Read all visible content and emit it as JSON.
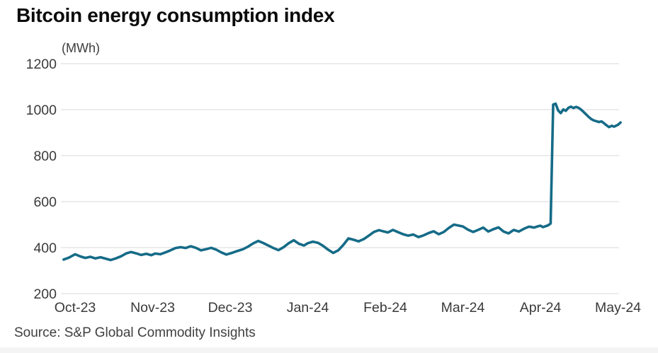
{
  "header": {
    "title": "Bitcoin energy consumption index"
  },
  "footer": {
    "source": "Source: S&P Global Commodity Insights"
  },
  "colors": {
    "line": "#156b87",
    "grid": "#d9d9d9",
    "axis_text": "#3a3a3a",
    "title_text": "#0b0b0b",
    "source_text": "#3f3f3f",
    "background": "#ffffff"
  },
  "chart_data": {
    "type": "line",
    "title": "Bitcoin energy consumption index",
    "unit_label": "(MWh)",
    "xlabel": "",
    "ylabel": "MWh",
    "ylim": [
      200,
      1200
    ],
    "y_ticks": [
      1200,
      1000,
      800,
      600,
      400,
      200
    ],
    "x_tick_labels": [
      "Oct-23",
      "Nov-23",
      "Dec-23",
      "Jan-24",
      "Feb-24",
      "Mar-24",
      "Apr-24",
      "May-24"
    ],
    "grid": "horizontal",
    "legend": "none",
    "series": [
      {
        "name": "Bitcoin energy consumption index (MWh)",
        "color": "#156b87",
        "points": [
          [
            "2023-09-27",
            348
          ],
          [
            "2023-09-29",
            356
          ],
          [
            "2023-10-01",
            371
          ],
          [
            "2023-10-03",
            362
          ],
          [
            "2023-10-05",
            355
          ],
          [
            "2023-10-07",
            360
          ],
          [
            "2023-10-09",
            353
          ],
          [
            "2023-10-11",
            358
          ],
          [
            "2023-10-13",
            352
          ],
          [
            "2023-10-15",
            346
          ],
          [
            "2023-10-17",
            353
          ],
          [
            "2023-10-19",
            362
          ],
          [
            "2023-10-21",
            374
          ],
          [
            "2023-10-23",
            381
          ],
          [
            "2023-10-25",
            375
          ],
          [
            "2023-10-27",
            368
          ],
          [
            "2023-10-29",
            373
          ],
          [
            "2023-10-31",
            367
          ],
          [
            "2023-11-02",
            374
          ],
          [
            "2023-11-04",
            371
          ],
          [
            "2023-11-06",
            379
          ],
          [
            "2023-11-08",
            388
          ],
          [
            "2023-11-10",
            398
          ],
          [
            "2023-11-12",
            402
          ],
          [
            "2023-11-14",
            398
          ],
          [
            "2023-11-16",
            406
          ],
          [
            "2023-11-18",
            399
          ],
          [
            "2023-11-20",
            388
          ],
          [
            "2023-11-22",
            393
          ],
          [
            "2023-11-24",
            399
          ],
          [
            "2023-11-26",
            391
          ],
          [
            "2023-11-28",
            379
          ],
          [
            "2023-11-30",
            370
          ],
          [
            "2023-12-02",
            378
          ],
          [
            "2023-12-04",
            386
          ],
          [
            "2023-12-06",
            393
          ],
          [
            "2023-12-08",
            404
          ],
          [
            "2023-12-10",
            418
          ],
          [
            "2023-12-12",
            429
          ],
          [
            "2023-12-14",
            420
          ],
          [
            "2023-12-16",
            409
          ],
          [
            "2023-12-18",
            398
          ],
          [
            "2023-12-20",
            389
          ],
          [
            "2023-12-22",
            402
          ],
          [
            "2023-12-24",
            419
          ],
          [
            "2023-12-26",
            432
          ],
          [
            "2023-12-28",
            417
          ],
          [
            "2023-12-30",
            409
          ],
          [
            "2024-01-01",
            419
          ],
          [
            "2024-01-03",
            426
          ],
          [
            "2024-01-05",
            421
          ],
          [
            "2024-01-07",
            408
          ],
          [
            "2024-01-09",
            391
          ],
          [
            "2024-01-11",
            377
          ],
          [
            "2024-01-13",
            388
          ],
          [
            "2024-01-15",
            412
          ],
          [
            "2024-01-17",
            440
          ],
          [
            "2024-01-19",
            434
          ],
          [
            "2024-01-21",
            427
          ],
          [
            "2024-01-23",
            437
          ],
          [
            "2024-01-25",
            452
          ],
          [
            "2024-01-27",
            468
          ],
          [
            "2024-01-29",
            476
          ],
          [
            "2024-01-31",
            470
          ],
          [
            "2024-02-02",
            466
          ],
          [
            "2024-02-04",
            477
          ],
          [
            "2024-02-06",
            467
          ],
          [
            "2024-02-08",
            458
          ],
          [
            "2024-02-10",
            452
          ],
          [
            "2024-02-12",
            457
          ],
          [
            "2024-02-14",
            446
          ],
          [
            "2024-02-16",
            453
          ],
          [
            "2024-02-18",
            463
          ],
          [
            "2024-02-20",
            471
          ],
          [
            "2024-02-22",
            458
          ],
          [
            "2024-02-24",
            468
          ],
          [
            "2024-02-26",
            486
          ],
          [
            "2024-02-28",
            500
          ],
          [
            "2024-03-01",
            492
          ],
          [
            "2024-03-03",
            478
          ],
          [
            "2024-03-05",
            468
          ],
          [
            "2024-03-07",
            477
          ],
          [
            "2024-03-09",
            487
          ],
          [
            "2024-03-11",
            470
          ],
          [
            "2024-03-13",
            480
          ],
          [
            "2024-03-15",
            488
          ],
          [
            "2024-03-17",
            470
          ],
          [
            "2024-03-19",
            462
          ],
          [
            "2024-03-21",
            477
          ],
          [
            "2024-03-23",
            470
          ],
          [
            "2024-03-25",
            482
          ],
          [
            "2024-03-27",
            491
          ],
          [
            "2024-03-29",
            487
          ],
          [
            "2024-03-31",
            494
          ],
          [
            "2024-04-01",
            495
          ],
          [
            "2024-04-02",
            489
          ],
          [
            "2024-04-03",
            493
          ],
          [
            "2024-04-04",
            497
          ],
          [
            "2024-04-05",
            505
          ],
          [
            "2024-04-06",
            1022
          ],
          [
            "2024-04-07",
            1026
          ],
          [
            "2024-04-08",
            996
          ],
          [
            "2024-04-09",
            985
          ],
          [
            "2024-04-10",
            1001
          ],
          [
            "2024-04-11",
            995
          ],
          [
            "2024-04-12",
            1008
          ],
          [
            "2024-04-13",
            1013
          ],
          [
            "2024-04-14",
            1007
          ],
          [
            "2024-04-15",
            1012
          ],
          [
            "2024-04-16",
            1008
          ],
          [
            "2024-04-17",
            1000
          ],
          [
            "2024-04-18",
            990
          ],
          [
            "2024-04-19",
            979
          ],
          [
            "2024-04-20",
            968
          ],
          [
            "2024-04-21",
            959
          ],
          [
            "2024-04-22",
            953
          ],
          [
            "2024-04-23",
            950
          ],
          [
            "2024-04-24",
            946
          ],
          [
            "2024-04-25",
            949
          ],
          [
            "2024-04-26",
            941
          ],
          [
            "2024-04-27",
            932
          ],
          [
            "2024-04-28",
            924
          ],
          [
            "2024-04-29",
            930
          ],
          [
            "2024-04-30",
            926
          ],
          [
            "2024-05-01",
            934
          ],
          [
            "2024-05-02",
            944
          ]
        ]
      }
    ]
  }
}
